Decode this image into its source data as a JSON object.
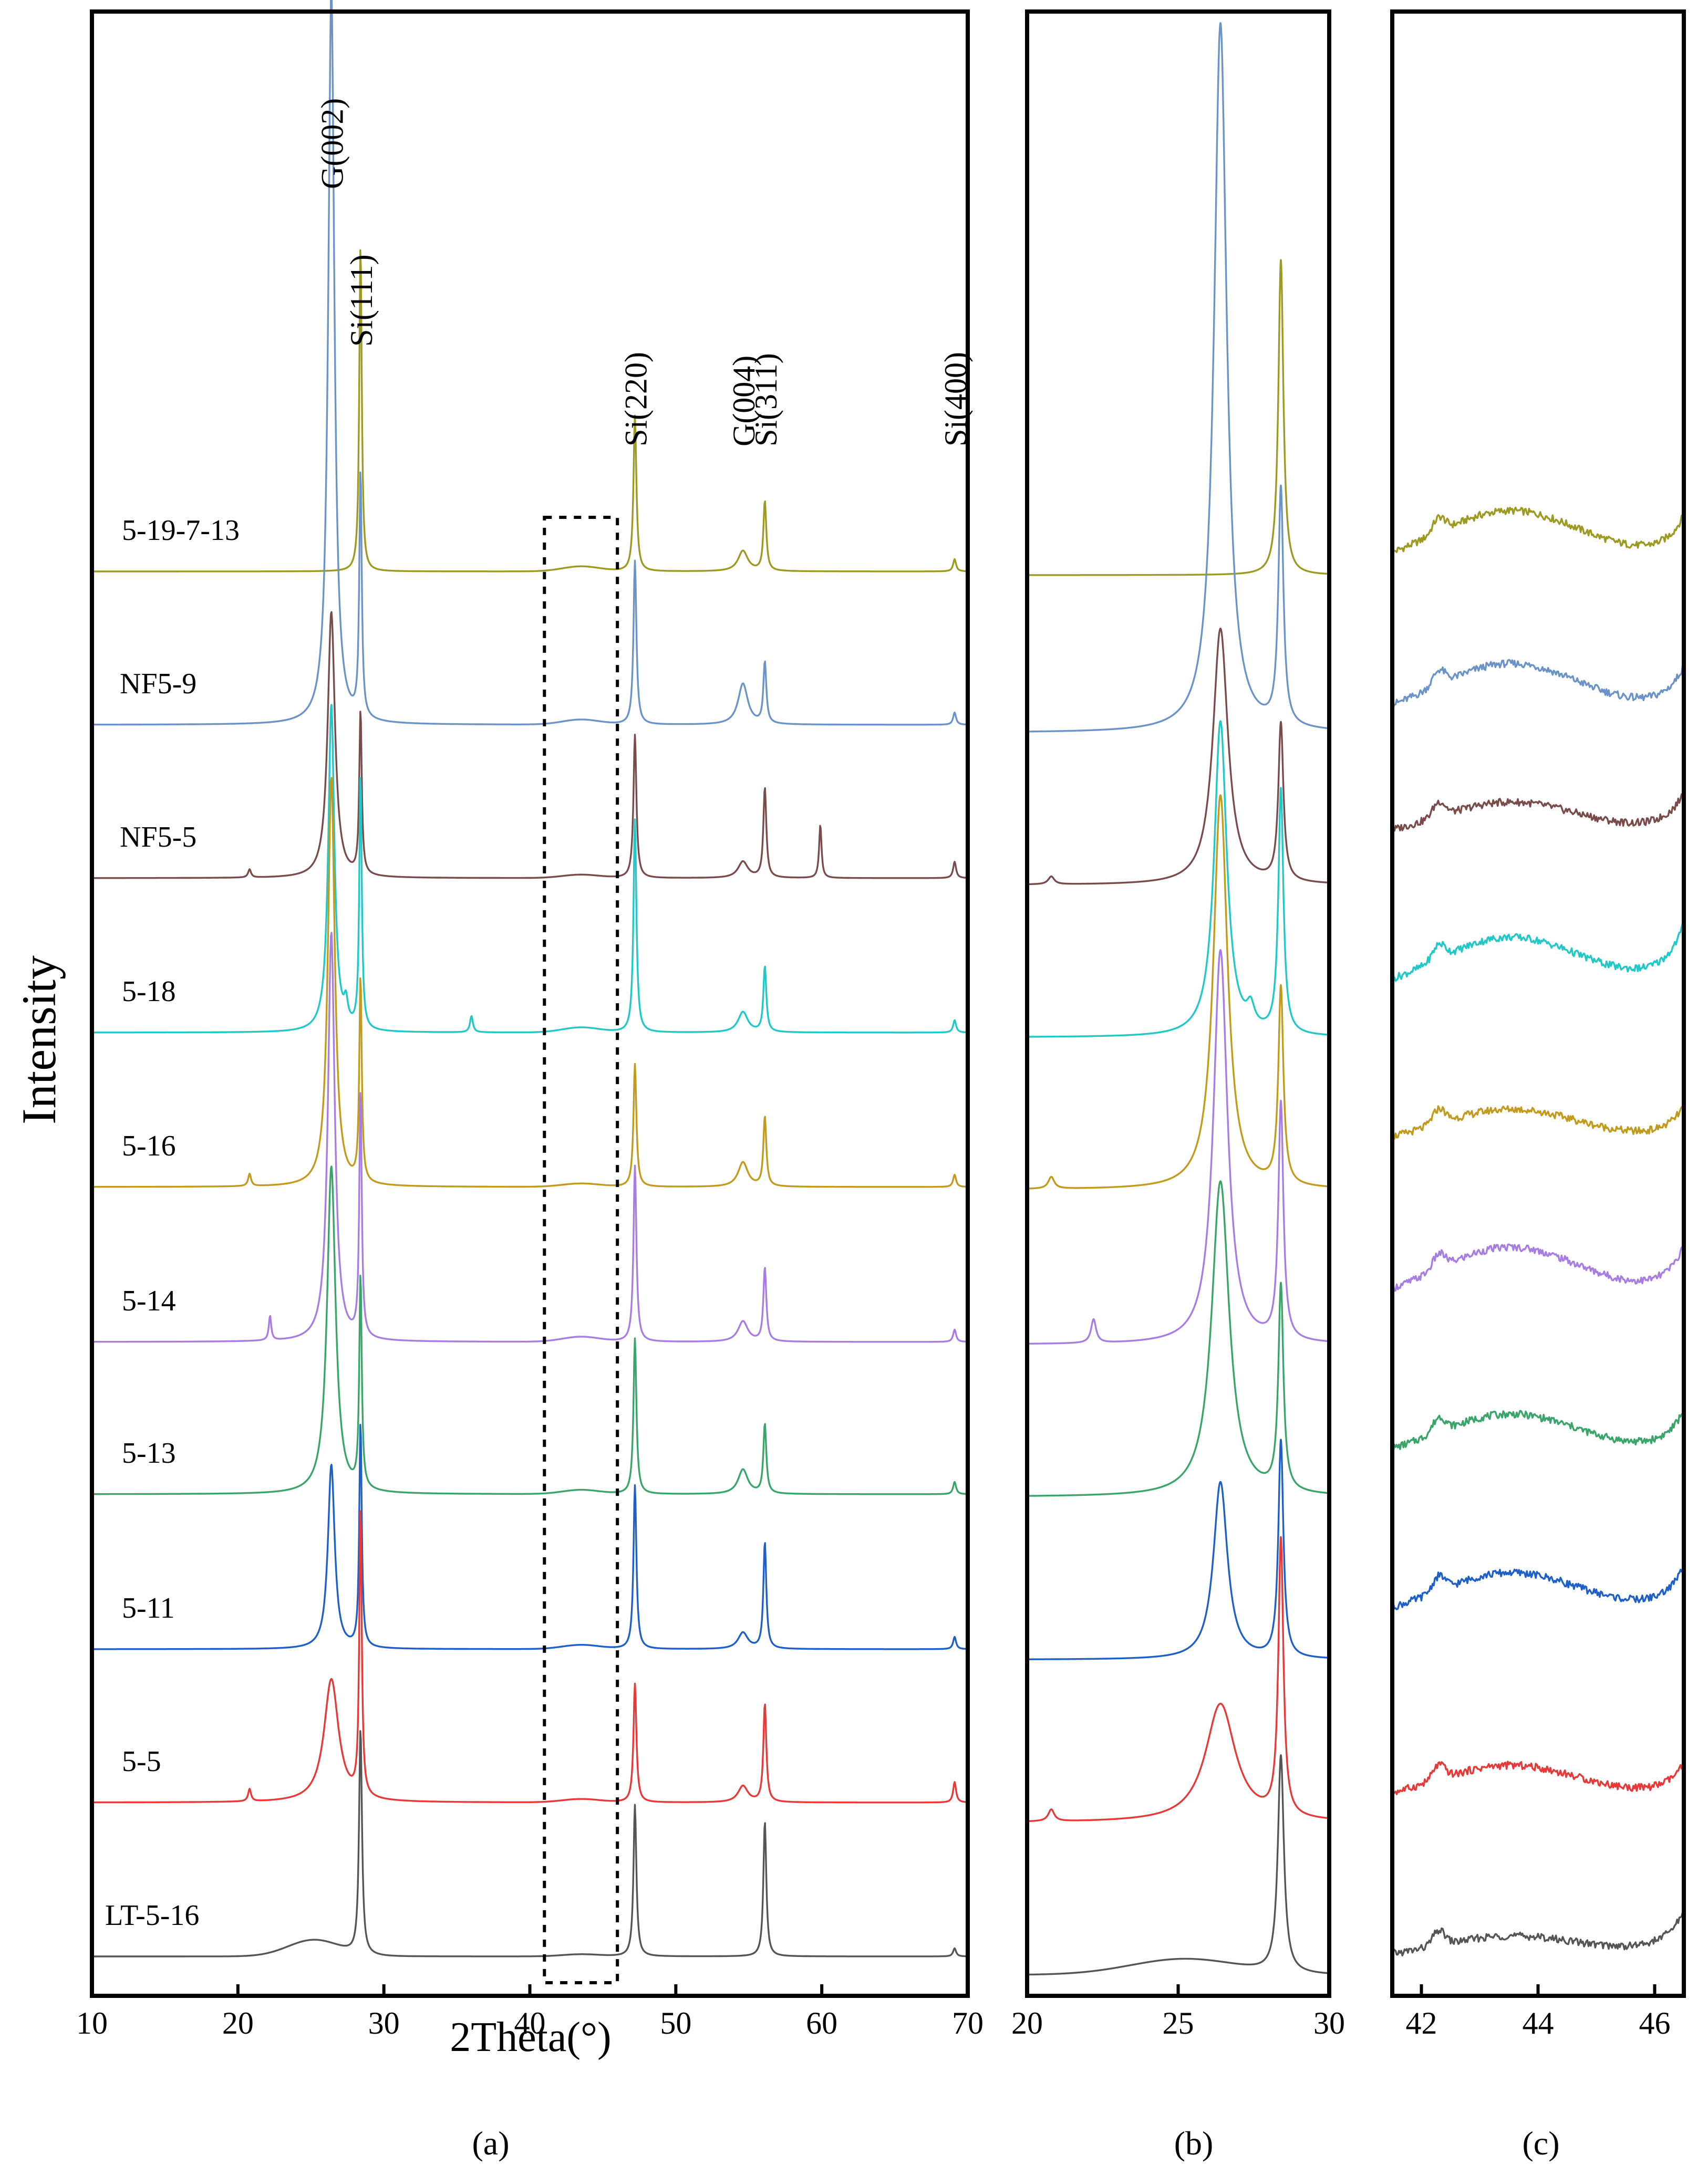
{
  "chart_data": [
    {
      "panel": "a",
      "type": "line",
      "xlabel": "2Theta(°)",
      "ylabel": "Intensity",
      "xlim": [
        10,
        70
      ],
      "xticks": [
        10,
        20,
        30,
        40,
        50,
        60,
        70
      ],
      "y_ticks_shown": false,
      "curve_order": "stacked, top to bottom",
      "annotations": [
        {
          "text": "G(002)",
          "x": 26.4
        },
        {
          "text": "Si(111)",
          "x": 28.4
        },
        {
          "text": "Si(220)",
          "x": 47.2
        },
        {
          "text": "G(004)",
          "x": 54.6
        },
        {
          "text": "Si(311)",
          "x": 56.1
        },
        {
          "text": "Si(400)",
          "x": 69.1
        }
      ],
      "zoom_box_x": [
        41,
        46
      ],
      "series": [
        {
          "name": "5-19-7-13",
          "color": "#9c9a21",
          "baseline": 0.06,
          "hump": 0.012,
          "peaks": [
            [
              26.4,
              0.0,
              0.25
            ],
            [
              28.4,
              0.8,
              0.1
            ],
            [
              47.2,
              0.38,
              0.12
            ],
            [
              54.6,
              0.05,
              0.4
            ],
            [
              56.1,
              0.17,
              0.12
            ],
            [
              69.1,
              0.03,
              0.12
            ]
          ]
        },
        {
          "name": "NF5-9",
          "color": "#6b93c8",
          "baseline": 0.06,
          "hump": 0.012,
          "peaks": [
            [
              26.4,
              1.8,
              0.25
            ],
            [
              28.4,
              0.6,
              0.1
            ],
            [
              47.2,
              0.4,
              0.12
            ],
            [
              54.6,
              0.1,
              0.4
            ],
            [
              56.1,
              0.15,
              0.12
            ],
            [
              69.1,
              0.03,
              0.12
            ]
          ]
        },
        {
          "name": "NF5-5",
          "color": "#7a4b4b",
          "baseline": 0.06,
          "hump": 0.008,
          "peaks": [
            [
              20.8,
              0.02,
              0.12
            ],
            [
              26.4,
              0.65,
              0.3
            ],
            [
              28.4,
              0.4,
              0.1
            ],
            [
              47.2,
              0.35,
              0.12
            ],
            [
              54.6,
              0.04,
              0.4
            ],
            [
              56.1,
              0.22,
              0.12
            ],
            [
              59.9,
              0.13,
              0.1
            ],
            [
              69.1,
              0.04,
              0.12
            ]
          ]
        },
        {
          "name": "5-18",
          "color": "#20c8c8",
          "baseline": 0.06,
          "hump": 0.012,
          "peaks": [
            [
              26.4,
              0.8,
              0.25
            ],
            [
              27.4,
              0.05,
              0.15
            ],
            [
              28.4,
              0.62,
              0.1
            ],
            [
              36.0,
              0.04,
              0.12
            ],
            [
              47.2,
              0.52,
              0.12
            ],
            [
              54.6,
              0.05,
              0.4
            ],
            [
              56.1,
              0.16,
              0.12
            ],
            [
              69.1,
              0.03,
              0.12
            ]
          ]
        },
        {
          "name": "5-16",
          "color": "#c29b1c",
          "baseline": 0.06,
          "hump": 0.008,
          "peaks": [
            [
              20.8,
              0.03,
              0.12
            ],
            [
              26.4,
              1.0,
              0.28
            ],
            [
              28.4,
              0.5,
              0.1
            ],
            [
              47.2,
              0.3,
              0.12
            ],
            [
              54.6,
              0.06,
              0.4
            ],
            [
              56.1,
              0.17,
              0.12
            ],
            [
              69.1,
              0.03,
              0.12
            ]
          ]
        },
        {
          "name": "5-14",
          "color": "#a87de3",
          "baseline": 0.06,
          "hump": 0.012,
          "peaks": [
            [
              22.2,
              0.06,
              0.1
            ],
            [
              26.4,
              1.0,
              0.28
            ],
            [
              28.4,
              0.6,
              0.1
            ],
            [
              47.2,
              0.43,
              0.12
            ],
            [
              54.6,
              0.05,
              0.4
            ],
            [
              56.1,
              0.18,
              0.12
            ],
            [
              69.1,
              0.03,
              0.12
            ]
          ]
        },
        {
          "name": "5-13",
          "color": "#3aa56a",
          "baseline": 0.06,
          "hump": 0.01,
          "peaks": [
            [
              26.4,
              0.8,
              0.35
            ],
            [
              28.4,
              0.52,
              0.1
            ],
            [
              47.2,
              0.38,
              0.12
            ],
            [
              54.6,
              0.06,
              0.4
            ],
            [
              56.1,
              0.17,
              0.12
            ],
            [
              69.1,
              0.03,
              0.12
            ]
          ]
        },
        {
          "name": "5-11",
          "color": "#1e5fc8",
          "baseline": 0.06,
          "hump": 0.01,
          "peaks": [
            [
              26.4,
              0.45,
              0.28
            ],
            [
              28.4,
              0.55,
              0.1
            ],
            [
              47.2,
              0.4,
              0.12
            ],
            [
              54.6,
              0.04,
              0.4
            ],
            [
              56.1,
              0.26,
              0.12
            ],
            [
              69.1,
              0.03,
              0.12
            ]
          ]
        },
        {
          "name": "5-5",
          "color": "#e83838",
          "baseline": 0.06,
          "hump": 0.008,
          "peaks": [
            [
              20.8,
              0.03,
              0.12
            ],
            [
              26.4,
              0.3,
              0.6
            ],
            [
              28.4,
              0.7,
              0.1
            ],
            [
              47.2,
              0.29,
              0.12
            ],
            [
              54.6,
              0.04,
              0.4
            ],
            [
              56.1,
              0.24,
              0.12
            ],
            [
              69.1,
              0.05,
              0.12
            ]
          ]
        },
        {
          "name": "LT-5-16",
          "color": "#555555",
          "baseline": 0.06,
          "hump": 0.005,
          "broad": [
            25.2,
            0.04,
            2.5
          ],
          "peaks": [
            [
              28.4,
              0.55,
              0.12
            ],
            [
              47.2,
              0.37,
              0.12
            ],
            [
              56.1,
              0.33,
              0.12
            ],
            [
              69.1,
              0.02,
              0.12
            ]
          ]
        }
      ]
    },
    {
      "panel": "b",
      "type": "line",
      "xlim": [
        20,
        30
      ],
      "xticks": [
        20,
        25,
        30
      ],
      "y_ticks_shown": false,
      "series_same_as_panel": "a",
      "curve_order": "stacked, top to bottom"
    },
    {
      "panel": "c",
      "type": "line",
      "xlim": [
        41.5,
        46.5
      ],
      "xticks": [
        42,
        44,
        46
      ],
      "y_ticks_shown": false,
      "series_same_as_panel": "a",
      "curve_order": "stacked, top to bottom"
    }
  ],
  "panel_labels": {
    "a": "(a)",
    "b": "(b)",
    "c": "(c)"
  }
}
